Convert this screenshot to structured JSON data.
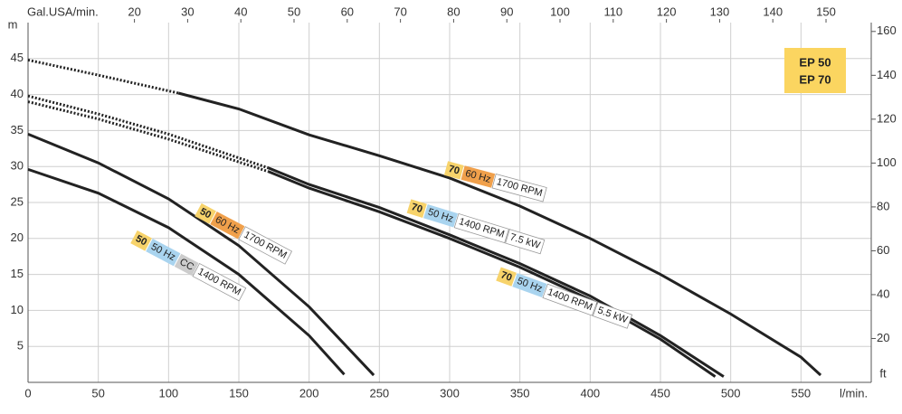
{
  "chart_data": {
    "type": "line",
    "x_label": "l/min.",
    "y_label": "m",
    "y2_label": "ft",
    "x2_label": "Gal.USA/min.",
    "xlim": [
      0,
      600
    ],
    "xticks": [
      0,
      50,
      100,
      150,
      200,
      250,
      300,
      350,
      400,
      450,
      500,
      550
    ],
    "ylim": [
      0,
      50
    ],
    "yticks": [
      5,
      10,
      15,
      20,
      25,
      30,
      35,
      40,
      45
    ],
    "y2lim": [
      0,
      164.04
    ],
    "y2ticks": [
      20,
      40,
      60,
      80,
      100,
      120,
      140,
      160
    ],
    "x2lim": [
      0,
      158.5
    ],
    "x2ticks": [
      20,
      30,
      40,
      50,
      60,
      70,
      80,
      90,
      100,
      110,
      120,
      130,
      140,
      150
    ],
    "grid": true,
    "models": [
      "EP 50",
      "EP 70"
    ],
    "models_color": "#fbd560",
    "series": [
      {
        "style": "solid",
        "color": "#222222",
        "x": [
          0,
          50,
          100,
          150,
          200,
          225
        ],
        "values": [
          29.6,
          26.3,
          21.5,
          15,
          6.5,
          1.1
        ],
        "tags": [
          {
            "text": "50",
            "color": "#f7d36b"
          },
          {
            "text": "50 Hz",
            "color": "#a9d4ef"
          },
          {
            "text": "CC",
            "color": "#cccccc"
          },
          {
            "text": "1400 RPM",
            "color": "#ffffff"
          }
        ]
      },
      {
        "style": "solid",
        "color": "#222222",
        "x": [
          0,
          50,
          100,
          150,
          200,
          246
        ],
        "values": [
          34.5,
          30.5,
          25.5,
          19,
          10.5,
          1
        ],
        "tags": [
          {
            "text": "50",
            "color": "#f7d36b"
          },
          {
            "text": "60 Hz",
            "color": "#f0a04b"
          },
          {
            "text": "1700 RPM",
            "color": "#ffffff"
          }
        ]
      },
      {
        "style": "dotted",
        "color": "#222222",
        "x": [
          0,
          50,
          107
        ],
        "values": [
          44.8,
          42.7,
          40.2
        ]
      },
      {
        "style": "solid",
        "color": "#222222",
        "x": [
          107,
          150,
          200,
          250,
          300,
          350,
          400,
          450,
          500,
          550,
          564
        ],
        "values": [
          40.2,
          38,
          34.4,
          31.5,
          28.4,
          24.5,
          20,
          15,
          9.5,
          3.5,
          1
        ],
        "tags": [
          {
            "text": "70",
            "color": "#f7d36b"
          },
          {
            "text": "60 Hz",
            "color": "#f0a04b"
          },
          {
            "text": "1700 RPM",
            "color": "#ffffff"
          }
        ]
      },
      {
        "style": "dotted",
        "color": "#222222",
        "x": [
          0,
          50,
          100,
          171
        ],
        "values": [
          39.8,
          37.3,
          34.5,
          29.8
        ]
      },
      {
        "style": "solid",
        "color": "#222222",
        "x": [
          171,
          200,
          250,
          300,
          350,
          400,
          450,
          495
        ],
        "values": [
          29.8,
          27.5,
          24.3,
          20.5,
          16.5,
          12,
          6.5,
          0.8
        ],
        "tags": [
          {
            "text": "70",
            "color": "#f7d36b"
          },
          {
            "text": "50 Hz",
            "color": "#a9d4ef"
          },
          {
            "text": "1400 RPM",
            "color": "#ffffff"
          },
          {
            "text": "7.5 kW",
            "color": "#ffffff"
          }
        ]
      },
      {
        "style": "dotted",
        "color": "#222222",
        "x": [
          0,
          50,
          100,
          171
        ],
        "values": [
          39,
          36.6,
          33.8,
          29.3
        ]
      },
      {
        "style": "solid",
        "color": "#222222",
        "x": [
          171,
          200,
          250,
          300,
          350,
          400,
          450,
          489
        ],
        "values": [
          29.3,
          27,
          23.7,
          20,
          16,
          11.5,
          6,
          0.8
        ],
        "tags": [
          {
            "text": "70",
            "color": "#f7d36b"
          },
          {
            "text": "50 Hz",
            "color": "#a9d4ef"
          },
          {
            "text": "1400 RPM",
            "color": "#ffffff"
          },
          {
            "text": "5.5 kW",
            "color": "#ffffff"
          }
        ]
      }
    ]
  }
}
